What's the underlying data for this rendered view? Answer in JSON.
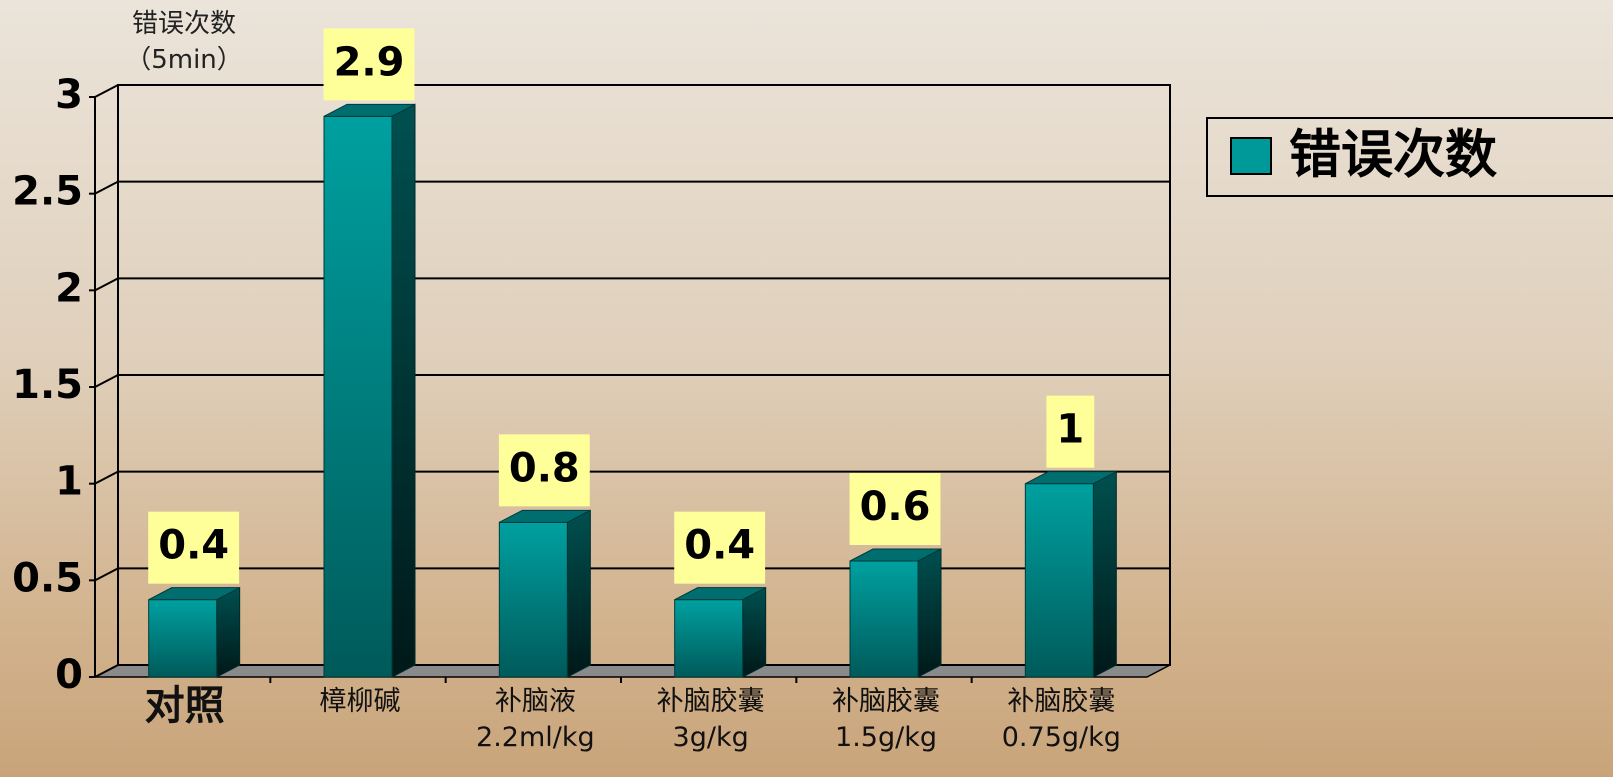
{
  "chart_data": {
    "type": "bar3d",
    "y_label": "错误次数\n（5min）",
    "categories": [
      "对照",
      "樟柳碱",
      "补脑液\n2.2ml/kg",
      "补脑胶囊\n3g/kg",
      "补脑胶囊\n1.5g/kg",
      "补脑胶囊\n0.75g/kg"
    ],
    "series": [
      {
        "name": "错误次数",
        "color": "#009999",
        "values": [
          0.4,
          2.9,
          0.8,
          0.4,
          0.6,
          1
        ]
      }
    ],
    "ylim": [
      0,
      3
    ],
    "yticks": [
      0,
      0.5,
      1,
      1.5,
      2,
      2.5,
      3
    ],
    "grid": true,
    "legend": "right"
  }
}
